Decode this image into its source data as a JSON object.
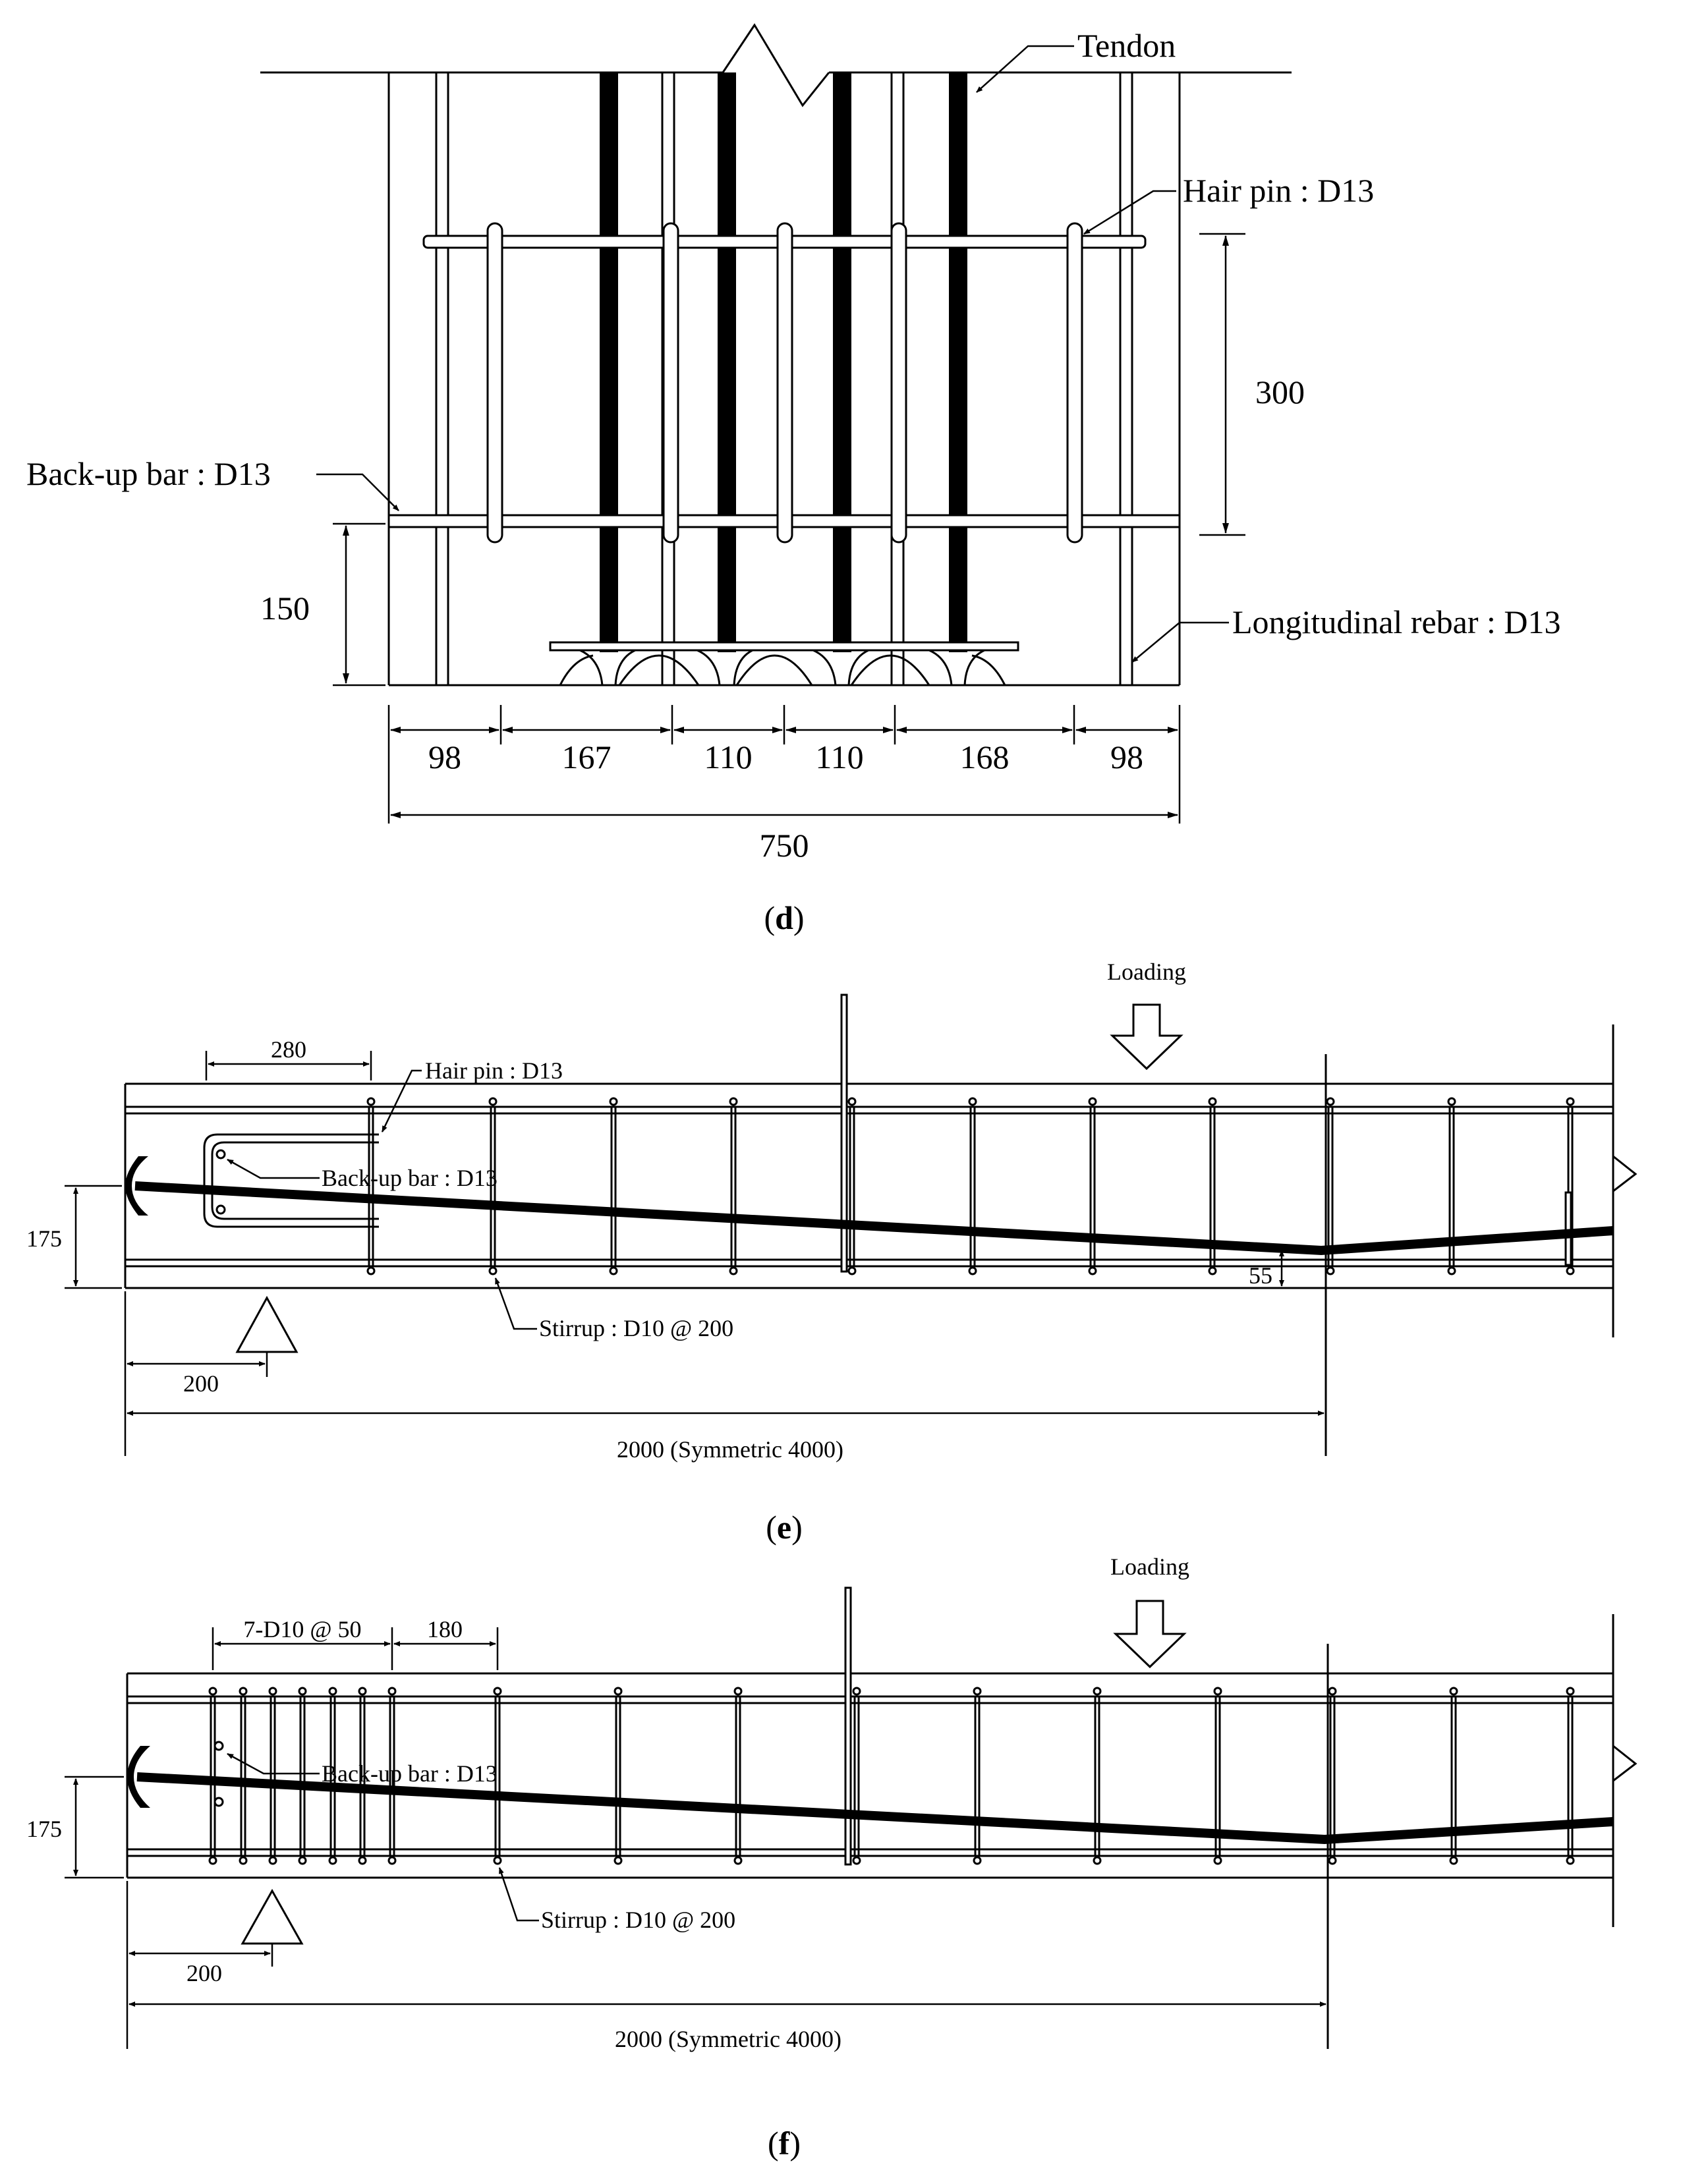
{
  "panel_d": {
    "caption_open": "(",
    "caption_letter": "d",
    "caption_close": ")",
    "tendon_label": "Tendon",
    "hairpin_label": "Hair pin : D13",
    "backup_label": "Back-up bar : D13",
    "longitudinal_label": "Longitudinal rebar : D13",
    "dim_300": "300",
    "dim_150": "150",
    "spacings": [
      "98",
      "167",
      "110",
      "110",
      "168",
      "98"
    ],
    "total_width": "750"
  },
  "panel_e": {
    "caption_open": "(",
    "caption_letter": "e",
    "caption_close": ")",
    "loading_label": "Loading",
    "hairpin_label": "Hair pin : D13",
    "backup_label": "Back-up bar : D13",
    "stirrup_label": "Stirrup : D10 @ 200",
    "dim_280": "280",
    "dim_175": "175",
    "dim_55": "55",
    "dim_200": "200",
    "dim_span": "2000 (Symmetric  4000)"
  },
  "panel_f": {
    "caption_open": "(",
    "caption_letter": "f",
    "caption_close": ")",
    "loading_label": "Loading",
    "dense_label": "7-D10 @ 50",
    "dim_180": "180",
    "backup_label": "Back-up bar : D13",
    "stirrup_label": "Stirrup : D10 @ 200",
    "dim_175": "175",
    "dim_200": "200",
    "dim_span": "2000 (Symmetric  4000)"
  }
}
